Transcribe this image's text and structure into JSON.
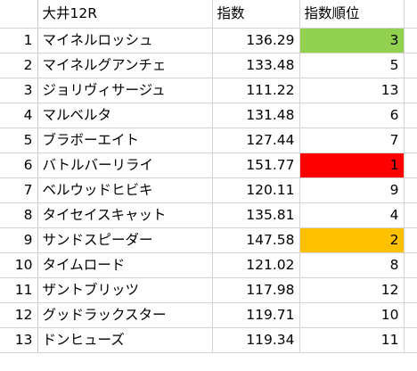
{
  "sheet": {
    "headers": [
      "大井12R",
      "指数",
      "指数順位"
    ],
    "highlight_colors": {
      "rank1": "#ff0000",
      "rank2": "#ffc000",
      "rank3": "#92d050"
    },
    "rows": [
      {
        "num": "1",
        "name": "マイネルロッシュ",
        "index": "136.29",
        "rank": "3",
        "fill": "#92d050"
      },
      {
        "num": "2",
        "name": "マイネルグアンチェ",
        "index": "133.48",
        "rank": "5",
        "fill": ""
      },
      {
        "num": "3",
        "name": "ジョリヴィサージュ",
        "index": "111.22",
        "rank": "13",
        "fill": ""
      },
      {
        "num": "4",
        "name": "マルベルタ",
        "index": "131.48",
        "rank": "6",
        "fill": ""
      },
      {
        "num": "5",
        "name": "ブラボーエイト",
        "index": "127.44",
        "rank": "7",
        "fill": ""
      },
      {
        "num": "6",
        "name": "バトルバーリライ",
        "index": "151.77",
        "rank": "1",
        "fill": "#ff0000"
      },
      {
        "num": "7",
        "name": "ベルウッドヒビキ",
        "index": "120.11",
        "rank": "9",
        "fill": ""
      },
      {
        "num": "8",
        "name": "タイセイスキャット",
        "index": "135.81",
        "rank": "4",
        "fill": ""
      },
      {
        "num": "9",
        "name": "サンドスピーダー",
        "index": "147.58",
        "rank": "2",
        "fill": "#ffc000"
      },
      {
        "num": "10",
        "name": "タイムロード",
        "index": "121.02",
        "rank": "8",
        "fill": ""
      },
      {
        "num": "11",
        "name": "ザントブリッツ",
        "index": "117.98",
        "rank": "12",
        "fill": ""
      },
      {
        "num": "12",
        "name": "グッドラックスター",
        "index": "119.71",
        "rank": "10",
        "fill": ""
      },
      {
        "num": "13",
        "name": "ドンヒューズ",
        "index": "119.34",
        "rank": "11",
        "fill": ""
      }
    ]
  }
}
